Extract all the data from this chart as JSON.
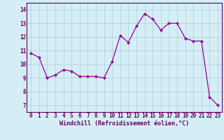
{
  "x": [
    0,
    1,
    2,
    3,
    4,
    5,
    6,
    7,
    8,
    9,
    10,
    11,
    12,
    13,
    14,
    15,
    16,
    17,
    18,
    19,
    20,
    21,
    22,
    23
  ],
  "y": [
    10.8,
    10.5,
    9.0,
    9.2,
    9.6,
    9.5,
    9.1,
    9.1,
    9.1,
    9.0,
    10.2,
    12.1,
    11.6,
    12.8,
    13.7,
    13.3,
    12.5,
    13.0,
    13.0,
    11.9,
    11.7,
    11.7,
    7.6,
    7.0
  ],
  "line_color": "#990099",
  "marker_color": "#990099",
  "bg_color": "#d5eef5",
  "grid_color": "#aaccdd",
  "xlabel": "Windchill (Refroidissement éolien,°C)",
  "ylabel_ticks": [
    7,
    8,
    9,
    10,
    11,
    12,
    13,
    14
  ],
  "ylim": [
    6.5,
    14.5
  ],
  "xlim": [
    -0.5,
    23.5
  ],
  "xlabel_color": "#660066",
  "tick_color": "#660066",
  "spine_color": "#660066",
  "tick_fontsize": 5.5,
  "xlabel_fontsize": 6.0
}
